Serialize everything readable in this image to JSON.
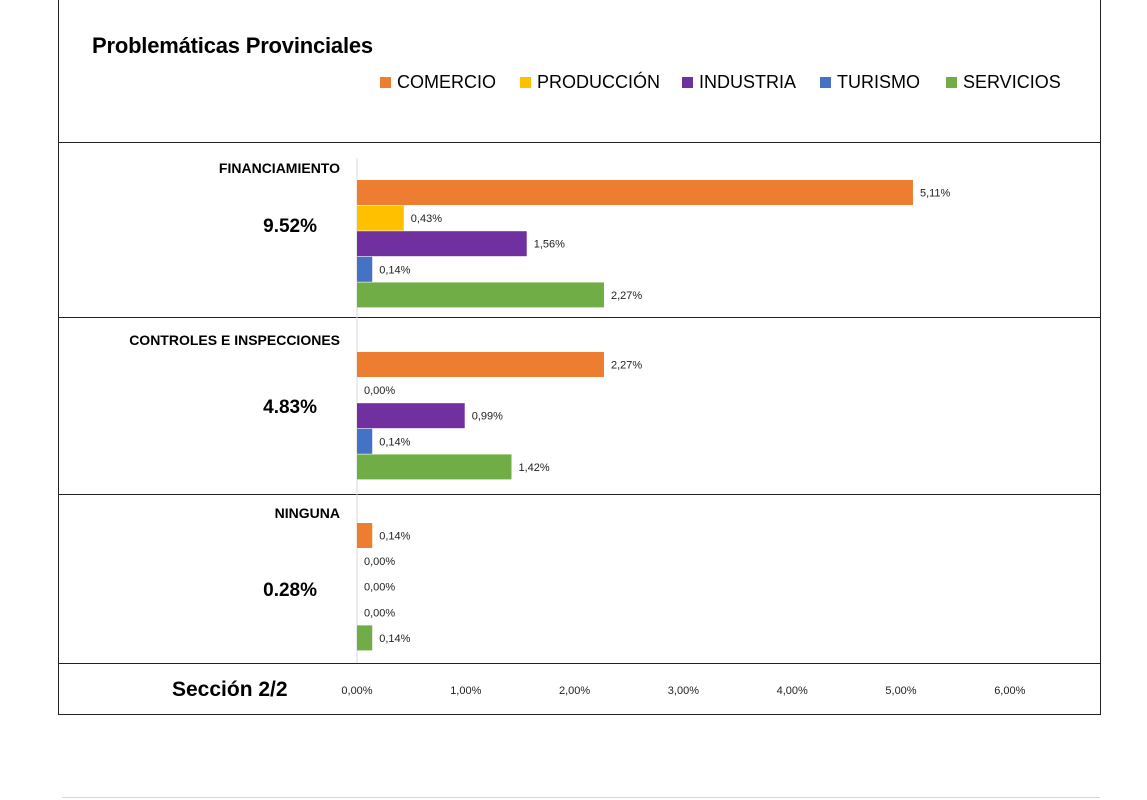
{
  "title": "Problemáticas Provinciales",
  "footer_label": "Sección 2/2",
  "legend": [
    {
      "label": "COMERCIO",
      "color": "#ED7D31"
    },
    {
      "label": "PRODUCCIÓN",
      "color": "#FFC000"
    },
    {
      "label": "INDUSTRIA",
      "color": "#7030A0"
    },
    {
      "label": "TURISMO",
      "color": "#4472C4"
    },
    {
      "label": "SERVICIOS",
      "color": "#70AD47"
    }
  ],
  "chart_data": {
    "type": "bar",
    "orientation": "horizontal",
    "title": "Problemáticas Provinciales",
    "xlim": [
      0,
      6
    ],
    "x_ticks": [
      0,
      1,
      2,
      3,
      4,
      5,
      6
    ],
    "x_tick_labels": [
      "0,00%",
      "1,00%",
      "2,00%",
      "3,00%",
      "4,00%",
      "5,00%",
      "6,00%"
    ],
    "series_names": [
      "COMERCIO",
      "PRODUCCIÓN",
      "INDUSTRIA",
      "TURISMO",
      "SERVICIOS"
    ],
    "series_colors": [
      "#ED7D31",
      "#FFC000",
      "#7030A0",
      "#4472C4",
      "#70AD47"
    ],
    "legend_position": "top",
    "grid": false,
    "groups": [
      {
        "label": "FINANCIAMIENTO",
        "total": "9.52%",
        "values": [
          5.11,
          0.43,
          1.56,
          0.14,
          2.27
        ],
        "value_labels": [
          "5,11%",
          "0,43%",
          "1,56%",
          "0,14%",
          "2,27%"
        ]
      },
      {
        "label": "CONTROLES E INSPECCIONES",
        "total": "4.83%",
        "values": [
          2.27,
          0.0,
          0.99,
          0.14,
          1.42
        ],
        "value_labels": [
          "2,27%",
          "0,00%",
          "0,99%",
          "0,14%",
          "1,42%"
        ]
      },
      {
        "label": "NINGUNA",
        "total": "0.28%",
        "values": [
          0.14,
          0.0,
          0.0,
          0.0,
          0.14
        ],
        "value_labels": [
          "0,14%",
          "0,00%",
          "0,00%",
          "0,00%",
          "0,14%"
        ]
      }
    ]
  }
}
